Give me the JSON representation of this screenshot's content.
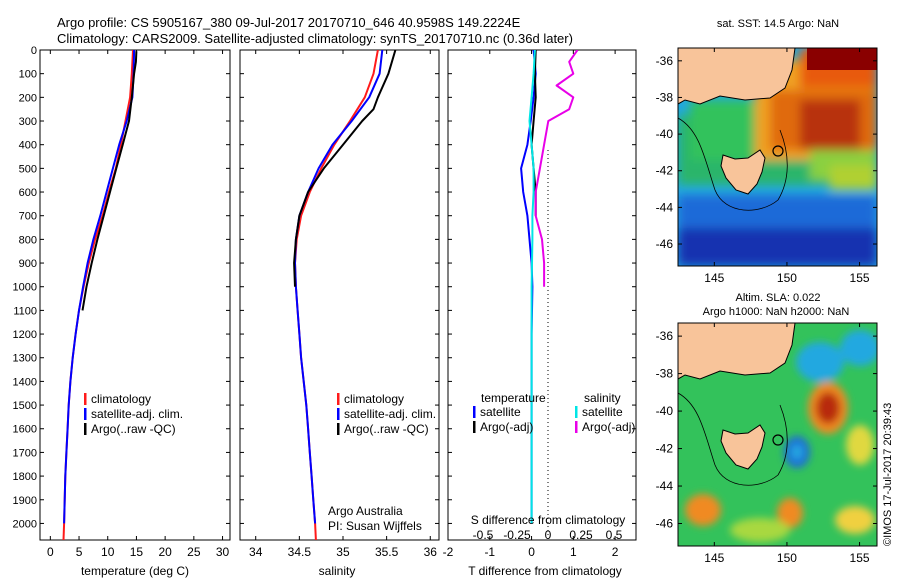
{
  "header": {
    "line1": "Argo profile: CS 5905167_380 09-Jul-2017 20170710_646 40.9598S 149.2224E",
    "line2": "Climatology: CARS2009. Satellite-adjusted climatology: synTS_20170710.nc (0.36d later)"
  },
  "depth_ticks": [
    0,
    100,
    200,
    300,
    400,
    500,
    600,
    700,
    800,
    900,
    1000,
    1100,
    1200,
    1300,
    1400,
    1500,
    1600,
    1700,
    1800,
    1900,
    2000
  ],
  "colors": {
    "climatology": "#ff1a1a",
    "satellite": "#0000ff",
    "argo": "#000000",
    "sal_satellite": "#00e5e5",
    "sal_argo": "#e800e8",
    "land": "#f8c49a"
  },
  "chart_data": [
    {
      "type": "line",
      "id": "temperature",
      "xlabel": "temperature (deg C)",
      "xticks": [
        "0",
        "5",
        "10",
        "15",
        "20",
        "25",
        "30"
      ],
      "xtick_values": [
        0,
        5,
        10,
        15,
        20,
        25,
        30
      ],
      "xlim": [
        -1.8,
        31.3
      ],
      "ylim": [
        0,
        2070
      ],
      "y_reversed": true,
      "legend": [
        "climatology",
        "satellite-adj. clim.",
        "Argo(..raw -QC)"
      ],
      "series": [
        {
          "name": "climatology",
          "color": "#ff1a1a",
          "x": [
            14.4,
            14.2,
            13.9,
            13.1,
            12.3,
            11.4,
            10.2,
            9.1,
            7.8,
            6.7,
            5.8,
            5.0,
            4.4,
            3.9,
            3.5,
            3.2,
            3.0,
            2.8,
            2.6,
            2.5,
            2.4,
            2.3
          ],
          "y": [
            0,
            100,
            200,
            300,
            400,
            500,
            600,
            700,
            800,
            900,
            1000,
            1100,
            1200,
            1300,
            1400,
            1500,
            1600,
            1700,
            1800,
            1900,
            2000,
            2070
          ]
        },
        {
          "name": "satellite-adj. clim.",
          "color": "#0000ff",
          "x": [
            14.6,
            14.5,
            14.3,
            13.3,
            12.0,
            10.9,
            9.8,
            8.7,
            7.5,
            6.5,
            5.7,
            5.0,
            4.4,
            3.9,
            3.5,
            3.2,
            3.0,
            2.8,
            2.6,
            2.5,
            2.4
          ],
          "y": [
            0,
            100,
            200,
            300,
            400,
            500,
            600,
            700,
            800,
            900,
            1000,
            1100,
            1200,
            1300,
            1400,
            1500,
            1600,
            1700,
            1800,
            1900,
            2000
          ]
        },
        {
          "name": "Argo(..raw -QC)",
          "color": "#000000",
          "x": [
            15.0,
            14.9,
            14.6,
            14.2,
            13.7,
            12.6,
            11.5,
            10.4,
            9.3,
            8.2,
            7.2,
            6.3,
            5.6
          ],
          "y": [
            5,
            50,
            100,
            200,
            300,
            400,
            500,
            600,
            700,
            800,
            900,
            1000,
            1100
          ]
        }
      ]
    },
    {
      "type": "line",
      "id": "salinity",
      "xlabel": "salinity",
      "xticks": [
        "34",
        "34.5",
        "35",
        "35.5",
        "36"
      ],
      "xtick_values": [
        34,
        34.5,
        35,
        35.5,
        36
      ],
      "xlim": [
        33.82,
        36.1
      ],
      "ylim": [
        0,
        2070
      ],
      "y_reversed": true,
      "legend": [
        "climatology",
        "satellite-adj. clim.",
        "Argo(..raw -QC)"
      ],
      "annotation": [
        "Argo Australia",
        "PI: Susan Wijffels"
      ],
      "series": [
        {
          "name": "climatology",
          "color": "#ff1a1a",
          "x": [
            35.4,
            35.35,
            35.25,
            35.08,
            34.9,
            34.75,
            34.62,
            34.52,
            34.47,
            34.45,
            34.46,
            34.48,
            34.5,
            34.52,
            34.55,
            34.58,
            34.6,
            34.62,
            34.64,
            34.66,
            34.68,
            34.69
          ],
          "y": [
            0,
            100,
            200,
            300,
            400,
            500,
            600,
            700,
            800,
            900,
            1000,
            1100,
            1200,
            1300,
            1400,
            1500,
            1600,
            1700,
            1800,
            1900,
            2000,
            2070
          ]
        },
        {
          "name": "satellite-adj. clim.",
          "color": "#0000ff",
          "x": [
            35.45,
            35.42,
            35.3,
            35.1,
            34.88,
            34.72,
            34.6,
            34.5,
            34.46,
            34.45,
            34.46,
            34.48,
            34.5,
            34.52,
            34.55,
            34.58,
            34.6,
            34.62,
            34.64,
            34.66,
            34.68
          ],
          "y": [
            0,
            100,
            200,
            300,
            400,
            500,
            600,
            700,
            800,
            900,
            1000,
            1100,
            1200,
            1300,
            1400,
            1500,
            1600,
            1700,
            1800,
            1900,
            2000
          ]
        },
        {
          "name": "Argo(..raw -QC)",
          "color": "#000000",
          "x": [
            35.6,
            35.52,
            35.4,
            35.35,
            35.22,
            35.0,
            34.78,
            34.6,
            34.5,
            34.46,
            34.44,
            34.45
          ],
          "y": [
            0,
            100,
            200,
            250,
            300,
            400,
            500,
            600,
            700,
            800,
            900,
            1000
          ]
        }
      ]
    },
    {
      "type": "line",
      "id": "differences",
      "xlabel": "T difference from climatology",
      "xticks": [
        "-2",
        "-1",
        "0",
        "1",
        "2"
      ],
      "xtick_values": [
        -2,
        -1,
        0,
        1,
        2
      ],
      "x2label": "S difference from climatology",
      "x2ticks": [
        "-0.5",
        "-0.25",
        "0",
        "0.25",
        "0.5"
      ],
      "xlim": [
        -2.0,
        2.5
      ],
      "ylim": [
        0,
        2070
      ],
      "y_reversed": true,
      "legend_titles": [
        "temperature",
        "salinity"
      ],
      "legend": [
        "satellite",
        "Argo(-adj)",
        "satellite",
        "Argo(-adj)"
      ],
      "series": [
        {
          "name": "satellite",
          "group": "temperature",
          "color": "#0000ff",
          "x": [
            0.05,
            0.1,
            0.05,
            -0.02,
            -0.1,
            -0.25,
            -0.2,
            -0.1,
            -0.05,
            0.0,
            0.02,
            0.0,
            0.0,
            0.0
          ],
          "y": [
            0,
            100,
            200,
            300,
            400,
            500,
            600,
            700,
            800,
            900,
            1000,
            1200,
            1600,
            2000
          ]
        },
        {
          "name": "Argo(-adj)",
          "group": "temperature",
          "color": "#000000",
          "x": [
            0.1,
            0.08,
            0.1,
            0.05,
            0.0,
            0.05,
            0.1,
            0.1
          ],
          "y": [
            0,
            100,
            200,
            300,
            400,
            500,
            600,
            700
          ]
        },
        {
          "name": "satellite",
          "group": "salinity",
          "color": "#00e5e5",
          "x": [
            0.08,
            0.05,
            0.0,
            -0.05,
            0.0,
            0.05,
            0.05,
            0.02,
            0.02,
            0.0,
            0.0,
            0.0
          ],
          "y": [
            0,
            100,
            200,
            300,
            400,
            500,
            600,
            700,
            800,
            1000,
            1500,
            2000
          ]
        },
        {
          "name": "Argo(-adj)",
          "group": "salinity",
          "color": "#e800e8",
          "x": [
            1.1,
            0.9,
            1.0,
            0.6,
            1.0,
            0.9,
            0.4,
            0.3,
            0.2,
            0.1,
            0.1,
            0.25,
            0.3,
            0.3
          ],
          "y": [
            0,
            50,
            100,
            150,
            200,
            250,
            300,
            400,
            500,
            600,
            700,
            800,
            900,
            1000
          ]
        }
      ]
    }
  ],
  "maps": [
    {
      "title": "sat. SST: 14.5  Argo: NaN",
      "xticks": [
        "145",
        "150",
        "155"
      ],
      "yticks": [
        "-36",
        "-38",
        "-40",
        "-42",
        "-44",
        "-46"
      ]
    },
    {
      "title": "Altim. SLA: 0.022",
      "subtitle": "Argo h1000: NaN  h2000: NaN",
      "xticks": [
        "145",
        "150",
        "155"
      ],
      "yticks": [
        "-36",
        "-38",
        "-40",
        "-42",
        "-44",
        "-46"
      ]
    }
  ],
  "side_stamp": "©IMOS 17-Jul-2017 20:39:43"
}
